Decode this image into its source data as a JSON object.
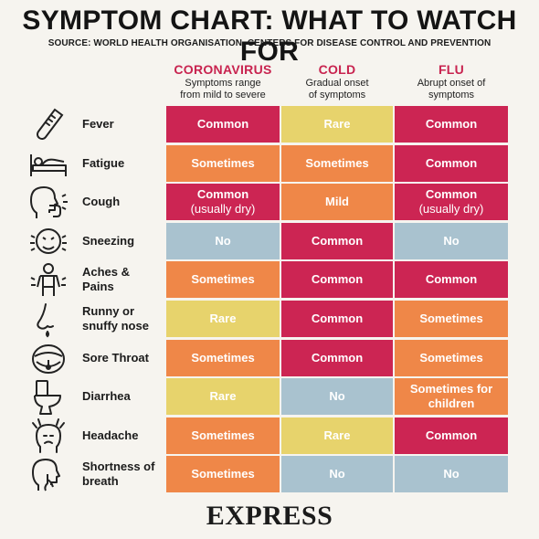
{
  "header": {
    "title": "SYMPTOM CHART: WHAT TO WATCH FOR",
    "source": "SOURCE: WORLD HEALTH ORGANISATION, CENTERS FOR DISEASE CONTROL AND PREVENTION"
  },
  "chart_data": {
    "type": "table",
    "columns": [
      {
        "name": "CORONAVIRUS",
        "subtitle": "Symptoms range from mild to severe"
      },
      {
        "name": "COLD",
        "subtitle": "Gradual onset of symptoms"
      },
      {
        "name": "FLU",
        "subtitle": "Abrupt onset of symptoms"
      }
    ],
    "rows": [
      {
        "symptom": "Fever",
        "icon": "thermometer-icon",
        "cells": [
          {
            "value": "Common",
            "level": "common"
          },
          {
            "value": "Rare",
            "level": "rare"
          },
          {
            "value": "Common",
            "level": "common"
          }
        ]
      },
      {
        "symptom": "Fatigue",
        "icon": "bed-icon",
        "cells": [
          {
            "value": "Sometimes",
            "level": "sometimes"
          },
          {
            "value": "Sometimes",
            "level": "sometimes"
          },
          {
            "value": "Common",
            "level": "common"
          }
        ]
      },
      {
        "symptom": "Cough",
        "icon": "cough-icon",
        "cells": [
          {
            "value": "Common",
            "note": "(usually dry)",
            "level": "common"
          },
          {
            "value": "Mild",
            "level": "sometimes"
          },
          {
            "value": "Common",
            "note": "(usually dry)",
            "level": "common"
          }
        ]
      },
      {
        "symptom": "Sneezing",
        "icon": "sneeze-icon",
        "cells": [
          {
            "value": "No",
            "level": "no"
          },
          {
            "value": "Common",
            "level": "common"
          },
          {
            "value": "No",
            "level": "no"
          }
        ]
      },
      {
        "symptom": "Aches & Pains",
        "icon": "aches-icon",
        "cells": [
          {
            "value": "Sometimes",
            "level": "sometimes"
          },
          {
            "value": "Common",
            "level": "common"
          },
          {
            "value": "Common",
            "level": "common"
          }
        ]
      },
      {
        "symptom": "Runny or snuffy nose",
        "icon": "nose-icon",
        "cells": [
          {
            "value": "Rare",
            "level": "rare"
          },
          {
            "value": "Common",
            "level": "common"
          },
          {
            "value": "Sometimes",
            "level": "sometimes"
          }
        ]
      },
      {
        "symptom": "Sore Throat",
        "icon": "throat-icon",
        "cells": [
          {
            "value": "Sometimes",
            "level": "sometimes"
          },
          {
            "value": "Common",
            "level": "common"
          },
          {
            "value": "Sometimes",
            "level": "sometimes"
          }
        ]
      },
      {
        "symptom": "Diarrhea",
        "icon": "toilet-icon",
        "cells": [
          {
            "value": "Rare",
            "level": "rare"
          },
          {
            "value": "No",
            "level": "no"
          },
          {
            "value": "Sometimes for children",
            "level": "sometimes"
          }
        ]
      },
      {
        "symptom": "Headache",
        "icon": "headache-icon",
        "cells": [
          {
            "value": "Sometimes",
            "level": "sometimes"
          },
          {
            "value": "Rare",
            "level": "rare"
          },
          {
            "value": "Common",
            "level": "common"
          }
        ]
      },
      {
        "symptom": "Shortness of breath",
        "icon": "breath-icon",
        "cells": [
          {
            "value": "Sometimes",
            "level": "sometimes"
          },
          {
            "value": "No",
            "level": "no"
          },
          {
            "value": "No",
            "level": "no"
          }
        ]
      }
    ],
    "level_colors": {
      "common": "#cc2553",
      "sometimes": "#ef8748",
      "rare": "#e7d36c",
      "no": "#a9c2cf"
    }
  },
  "footer": {
    "logo": "EXPRESS"
  }
}
